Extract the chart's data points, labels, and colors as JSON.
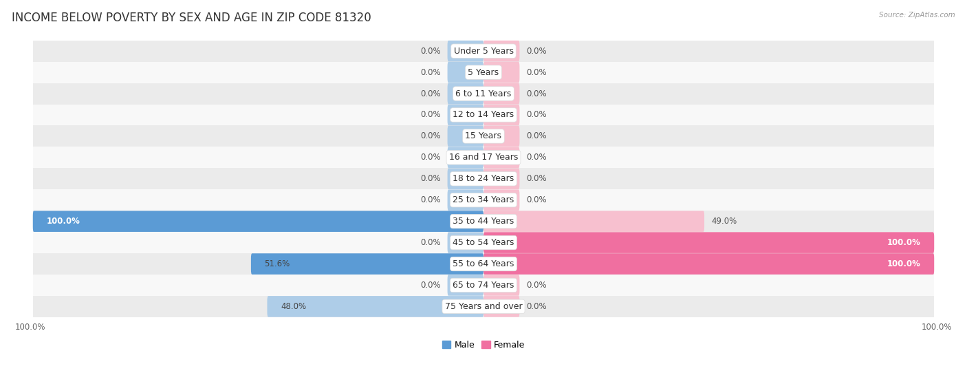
{
  "title": "INCOME BELOW POVERTY BY SEX AND AGE IN ZIP CODE 81320",
  "source": "Source: ZipAtlas.com",
  "categories": [
    "Under 5 Years",
    "5 Years",
    "6 to 11 Years",
    "12 to 14 Years",
    "15 Years",
    "16 and 17 Years",
    "18 to 24 Years",
    "25 to 34 Years",
    "35 to 44 Years",
    "45 to 54 Years",
    "55 to 64 Years",
    "65 to 74 Years",
    "75 Years and over"
  ],
  "male_values": [
    0.0,
    0.0,
    0.0,
    0.0,
    0.0,
    0.0,
    0.0,
    0.0,
    100.0,
    0.0,
    51.6,
    0.0,
    48.0
  ],
  "female_values": [
    0.0,
    0.0,
    0.0,
    0.0,
    0.0,
    0.0,
    0.0,
    0.0,
    49.0,
    100.0,
    100.0,
    0.0,
    0.0
  ],
  "male_color_light": "#aecde8",
  "male_color_dark": "#5b9bd5",
  "female_color_light": "#f7c0cf",
  "female_color_dark": "#f06fa0",
  "row_color_odd": "#ebebeb",
  "row_color_even": "#f8f8f8",
  "stub_value": 8.0,
  "max_value": 100.0,
  "title_fontsize": 12,
  "cat_fontsize": 9,
  "val_fontsize": 8.5,
  "background_color": "#ffffff"
}
